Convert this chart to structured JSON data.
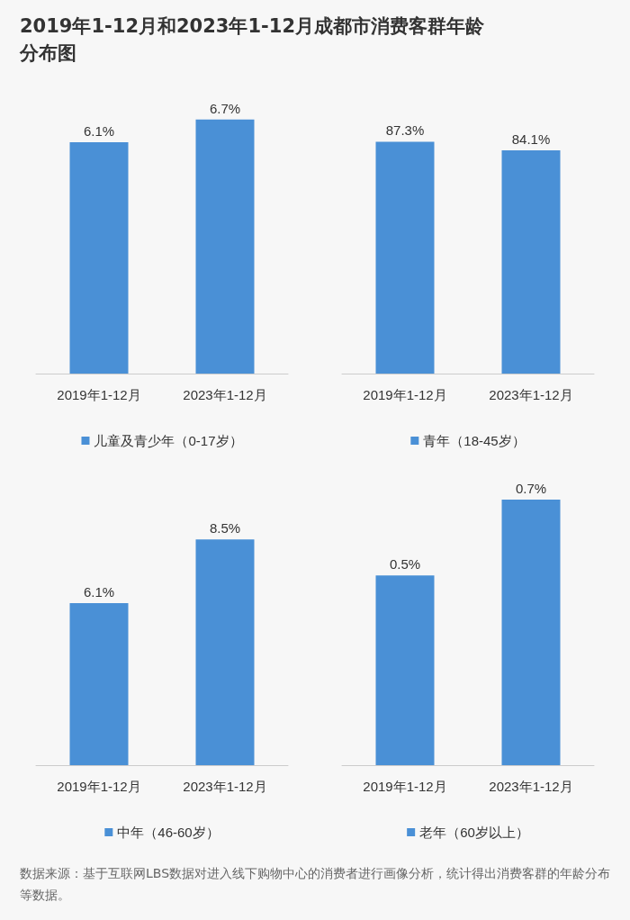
{
  "chart_data": [
    {
      "type": "bar",
      "title": "2019年1-12月和2023年1-12月成都市消费客群年龄分布图",
      "categories": [
        "2019年1-12月",
        "2023年1-12月"
      ],
      "series": [
        {
          "name": "儿童及青少年（0-17岁）",
          "color": "#4a90d6",
          "values": [
            6.1,
            6.7
          ],
          "value_labels": [
            "6.1%",
            "6.7%"
          ]
        }
      ],
      "legend": "bottom"
    },
    {
      "type": "bar",
      "categories": [
        "2019年1-12月",
        "2023年1-12月"
      ],
      "series": [
        {
          "name": "青年（18-45岁）",
          "color": "#4a90d6",
          "values": [
            87.3,
            84.1
          ],
          "value_labels": [
            "87.3%",
            "84.1%"
          ]
        }
      ],
      "legend": "bottom"
    },
    {
      "type": "bar",
      "categories": [
        "2019年1-12月",
        "2023年1-12月"
      ],
      "series": [
        {
          "name": "中年（46-60岁）",
          "color": "#4a90d6",
          "values": [
            6.1,
            8.5
          ],
          "value_labels": [
            "6.1%",
            "8.5%"
          ]
        }
      ],
      "legend": "bottom"
    },
    {
      "type": "bar",
      "categories": [
        "2019年1-12月",
        "2023年1-12月"
      ],
      "series": [
        {
          "name": "老年（60岁以上）",
          "color": "#4a90d6",
          "values": [
            0.5,
            0.7
          ],
          "value_labels": [
            "0.5%",
            "0.7%"
          ]
        }
      ],
      "legend": "bottom",
      "annotations": [
        "数据来源：基于互联网LBS数据对进入线下购物中心的消费者进行画像分析，统计得出消费客群的年龄分布等数据。"
      ]
    }
  ]
}
